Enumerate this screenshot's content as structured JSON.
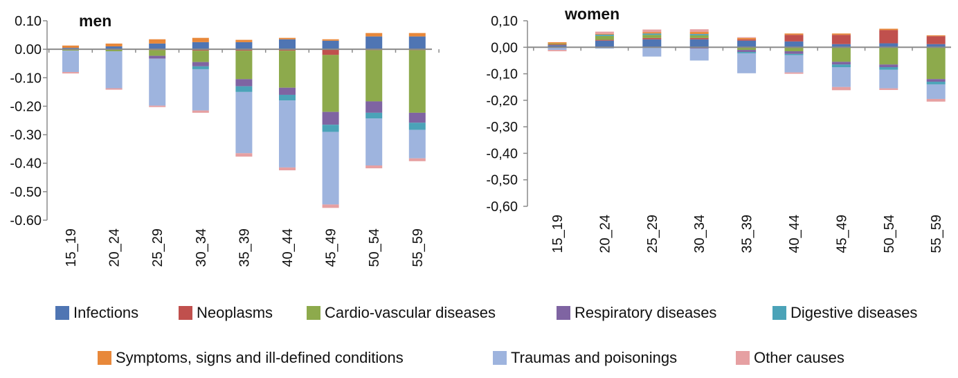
{
  "chart_data": [
    {
      "type": "bar",
      "stacked": true,
      "title": "men",
      "categories": [
        "15_19",
        "20_24",
        "25_29",
        "30_34",
        "35_39",
        "40_44",
        "45_49",
        "50_54",
        "55_59"
      ],
      "yticks": [
        "0.10",
        "0.00",
        "-0.10",
        "-0.20",
        "-0.30",
        "-0.40",
        "-0.50",
        "-0.60"
      ],
      "ylim": [
        -0.6,
        0.1
      ],
      "series": [
        {
          "name": "Infections",
          "color": "#4F75B3",
          "values": [
            0.005,
            0.01,
            0.02,
            0.025,
            0.025,
            0.035,
            0.03,
            0.045,
            0.045
          ]
        },
        {
          "name": "Neoplasms",
          "color": "#C0504D",
          "values": [
            -0.002,
            -0.002,
            -0.003,
            -0.005,
            -0.005,
            -0.005,
            -0.02,
            -0.003,
            -0.003
          ]
        },
        {
          "name": "Cardio-vascular diseases",
          "color": "#8DAA4C",
          "values": [
            -0.003,
            -0.005,
            -0.02,
            -0.04,
            -0.1,
            -0.13,
            -0.2,
            -0.18,
            -0.22
          ]
        },
        {
          "name": "Respiratory diseases",
          "color": "#7F64A2",
          "values": [
            0.0,
            0.0,
            -0.01,
            -0.015,
            -0.025,
            -0.025,
            -0.045,
            -0.04,
            -0.035
          ]
        },
        {
          "name": "Digestive diseases",
          "color": "#4BA3B8",
          "values": [
            0.0,
            0.0,
            0.0,
            -0.01,
            -0.02,
            -0.02,
            -0.025,
            -0.02,
            -0.025
          ]
        },
        {
          "name": "Symptoms, signs and ill-defined conditions",
          "color": "#E8883A",
          "values": [
            0.008,
            0.01,
            0.015,
            0.015,
            0.008,
            0.005,
            0.005,
            0.012,
            0.012
          ]
        },
        {
          "name": "Traumas and poisonings",
          "color": "#9EB4DE",
          "values": [
            -0.075,
            -0.13,
            -0.165,
            -0.145,
            -0.215,
            -0.235,
            -0.255,
            -0.165,
            -0.1
          ]
        },
        {
          "name": "Other causes",
          "color": "#E6A0A2",
          "values": [
            -0.005,
            -0.005,
            -0.005,
            -0.008,
            -0.012,
            -0.01,
            -0.012,
            -0.01,
            -0.01
          ]
        }
      ]
    },
    {
      "type": "bar",
      "stacked": true,
      "title": "women",
      "categories": [
        "15_19",
        "20_24",
        "25_29",
        "30_34",
        "35_39",
        "40_44",
        "45_49",
        "50_54",
        "55_59"
      ],
      "yticks": [
        "0,10",
        "0,00",
        "-0,10",
        "-0,20",
        "-0,30",
        "-0,40",
        "-0,50",
        "-0,60"
      ],
      "ylim": [
        -0.6,
        0.1
      ],
      "series": [
        {
          "name": "Infections",
          "color": "#4F75B3",
          "values": [
            0.008,
            0.025,
            0.03,
            0.03,
            0.025,
            0.022,
            0.012,
            0.015,
            0.012
          ]
        },
        {
          "name": "Neoplasms",
          "color": "#C0504D",
          "values": [
            0.003,
            0.003,
            0.005,
            0.005,
            0.005,
            0.025,
            0.035,
            0.05,
            0.03
          ]
        },
        {
          "name": "Cardio-vascular diseases",
          "color": "#8DAA4C",
          "values": [
            0.003,
            0.015,
            0.012,
            0.01,
            -0.01,
            -0.015,
            -0.055,
            -0.065,
            -0.12
          ]
        },
        {
          "name": "Respiratory diseases",
          "color": "#7F64A2",
          "values": [
            0.0,
            0.0,
            0.0,
            -0.005,
            -0.008,
            -0.01,
            -0.01,
            -0.01,
            -0.01
          ]
        },
        {
          "name": "Digestive diseases",
          "color": "#4BA3B8",
          "values": [
            0.0,
            0.005,
            0.005,
            0.005,
            -0.005,
            -0.005,
            -0.01,
            -0.01,
            -0.01
          ]
        },
        {
          "name": "Symptoms, signs and ill-defined conditions",
          "color": "#E8883A",
          "values": [
            0.005,
            0.003,
            0.005,
            0.008,
            0.005,
            0.005,
            0.005,
            0.005,
            0.003
          ]
        },
        {
          "name": "Traumas and poisonings",
          "color": "#9EB4DE",
          "values": [
            -0.01,
            -0.005,
            -0.035,
            -0.045,
            -0.075,
            -0.065,
            -0.075,
            -0.07,
            -0.055
          ]
        },
        {
          "name": "Other causes",
          "color": "#E6A0A2",
          "values": [
            -0.005,
            0.008,
            0.01,
            0.01,
            0.003,
            -0.005,
            -0.012,
            -0.006,
            -0.01
          ]
        }
      ]
    }
  ],
  "legend": {
    "row1": [
      {
        "label": "Infections",
        "color": "#4F75B3"
      },
      {
        "label": "Neoplasms",
        "color": "#C0504D"
      },
      {
        "label": "Cardio-vascular diseases",
        "color": "#8DAA4C"
      },
      {
        "label": "Respiratory diseases",
        "color": "#7F64A2"
      },
      {
        "label": "Digestive diseases",
        "color": "#4BA3B8"
      }
    ],
    "row2": [
      {
        "label": "Symptoms, signs and ill-defined conditions",
        "color": "#E8883A"
      },
      {
        "label": "Traumas and poisonings",
        "color": "#9EB4DE"
      },
      {
        "label": "Other causes",
        "color": "#E6A0A2"
      }
    ]
  }
}
